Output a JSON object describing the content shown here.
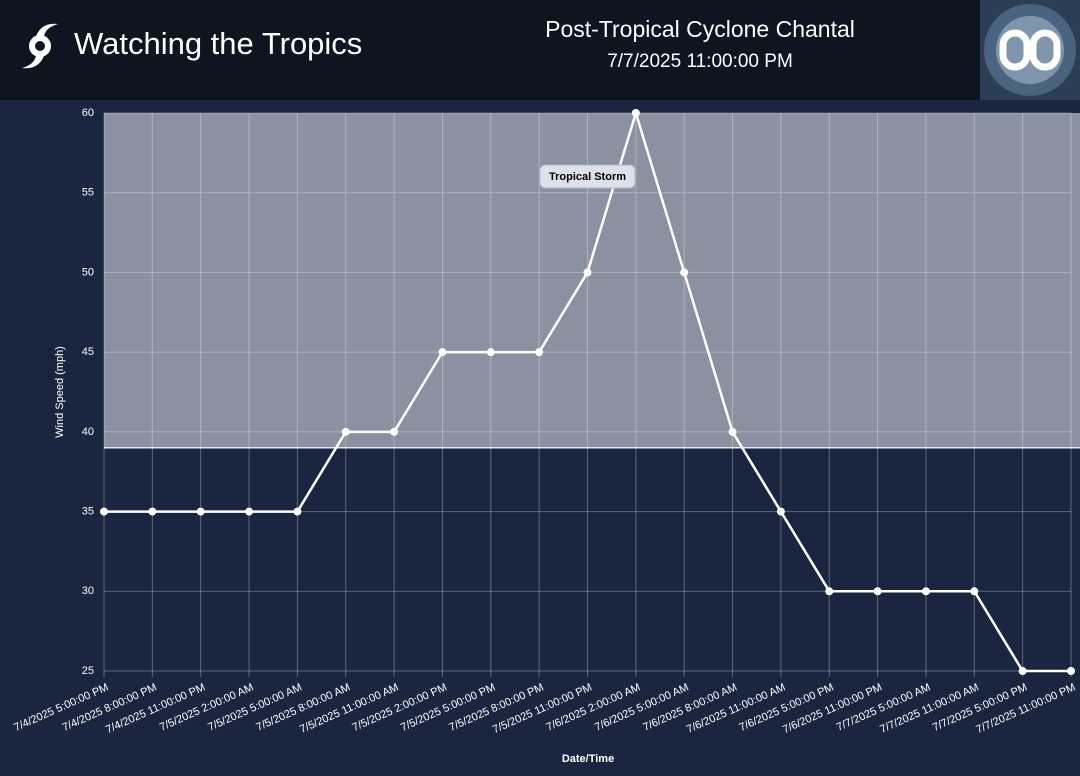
{
  "header": {
    "brand": "Watching the Tropics"
  },
  "chart_data": {
    "type": "line",
    "title": "Post-Tropical Cyclone Chantal",
    "subtitle": "7/7/2025 11:00:00 PM",
    "x_label": "Date/Time",
    "y_label": "Wind Speed (mph)",
    "categories": [
      "7/4/2025 5:00:00 PM",
      "7/4/2025 8:00:00 PM",
      "7/4/2025 11:00:00 PM",
      "7/5/2025 2:00:00 AM",
      "7/5/2025 5:00:00 AM",
      "7/5/2025 8:00:00 AM",
      "7/5/2025 11:00:00 AM",
      "7/5/2025 2:00:00 PM",
      "7/5/2025 5:00:00 PM",
      "7/5/2025 8:00:00 PM",
      "7/5/2025 11:00:00 PM",
      "7/6/2025 2:00:00 AM",
      "7/6/2025 5:00:00 AM",
      "7/6/2025 8:00:00 AM",
      "7/6/2025 11:00:00 AM",
      "7/6/2025 5:00:00 PM",
      "7/6/2025 11:00:00 PM",
      "7/7/2025 5:00:00 AM",
      "7/7/2025 11:00:00 AM",
      "7/7/2025 5:00:00 PM",
      "7/7/2025 11:00:00 PM"
    ],
    "series": [
      {
        "name": "Wind Speed",
        "color": "#ffffff",
        "values": [
          35,
          35,
          35,
          35,
          35,
          40,
          40,
          45,
          45,
          45,
          50,
          60,
          50,
          40,
          35,
          30,
          30,
          30,
          30,
          25,
          25
        ]
      }
    ],
    "ylim": [
      25,
      60
    ],
    "yticks": [
      25,
      30,
      35,
      40,
      45,
      50,
      55,
      60
    ],
    "grid": true,
    "band": {
      "from": 39,
      "to": 60,
      "label": "Tropical Storm",
      "color": "#8a91a0"
    }
  }
}
